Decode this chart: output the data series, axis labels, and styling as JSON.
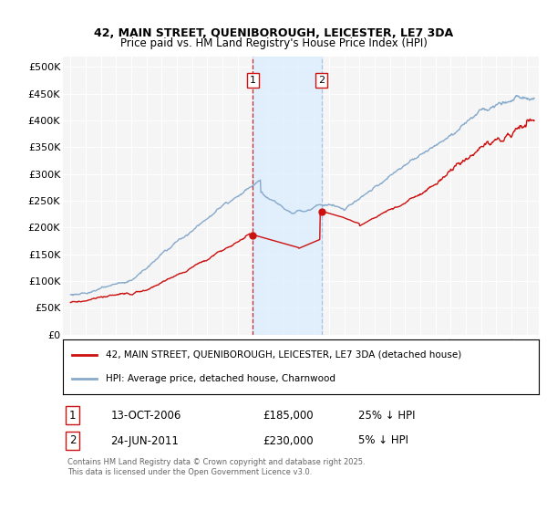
{
  "title": "42, MAIN STREET, QUENIBOROUGH, LEICESTER, LE7 3DA",
  "subtitle": "Price paid vs. HM Land Registry's House Price Index (HPI)",
  "background_color": "#ffffff",
  "plot_bg_color": "#f5f5f5",
  "red_line_label": "42, MAIN STREET, QUENIBOROUGH, LEICESTER, LE7 3DA (detached house)",
  "blue_line_label": "HPI: Average price, detached house, Charnwood",
  "annotation1_label": "1",
  "annotation1_date": "13-OCT-2006",
  "annotation1_price": "£185,000",
  "annotation1_hpi": "25% ↓ HPI",
  "annotation2_label": "2",
  "annotation2_date": "24-JUN-2011",
  "annotation2_price": "£230,000",
  "annotation2_hpi": "5% ↓ HPI",
  "footer": "Contains HM Land Registry data © Crown copyright and database right 2025.\nThis data is licensed under the Open Government Licence v3.0.",
  "ylim": [
    0,
    520000
  ],
  "yticks": [
    0,
    50000,
    100000,
    150000,
    200000,
    250000,
    300000,
    350000,
    400000,
    450000,
    500000
  ],
  "ytick_labels": [
    "£0",
    "£50K",
    "£100K",
    "£150K",
    "£200K",
    "£250K",
    "£300K",
    "£350K",
    "£400K",
    "£450K",
    "£500K"
  ],
  "vline1_x": 2007.0,
  "vline2_x": 2011.5,
  "marker1_x": 2007.0,
  "marker1_y": 185000,
  "marker2_x": 2011.5,
  "marker2_y": 230000,
  "red_color": "#cc1111",
  "blue_color": "#88aacc",
  "annot_fill_color": "#ddeeff",
  "vline_red_color": "#cc1111",
  "vline_blue_color": "#aabbdd",
  "xlim_left": 1994.5,
  "xlim_right": 2025.8
}
